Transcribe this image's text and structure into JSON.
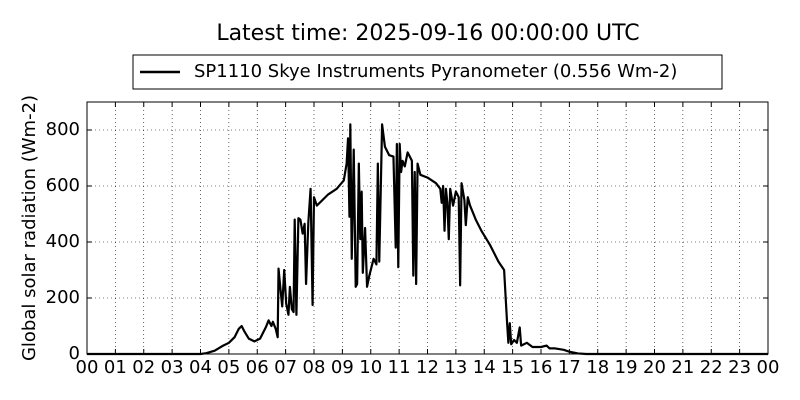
{
  "chart_data": {
    "type": "line",
    "title": "Latest time: 2025-09-16 00:00:00 UTC",
    "ylabel": "Global solar radiation (Wm-2)",
    "xlim": [
      0,
      24
    ],
    "ylim": [
      0,
      900
    ],
    "xticks": [
      {
        "value": 0,
        "label": "00"
      },
      {
        "value": 1,
        "label": "01"
      },
      {
        "value": 2,
        "label": "02"
      },
      {
        "value": 3,
        "label": "03"
      },
      {
        "value": 4,
        "label": "04"
      },
      {
        "value": 5,
        "label": "05"
      },
      {
        "value": 6,
        "label": "06"
      },
      {
        "value": 7,
        "label": "07"
      },
      {
        "value": 8,
        "label": "08"
      },
      {
        "value": 9,
        "label": "09"
      },
      {
        "value": 10,
        "label": "10"
      },
      {
        "value": 11,
        "label": "11"
      },
      {
        "value": 12,
        "label": "12"
      },
      {
        "value": 13,
        "label": "13"
      },
      {
        "value": 14,
        "label": "14"
      },
      {
        "value": 15,
        "label": "15"
      },
      {
        "value": 16,
        "label": "16"
      },
      {
        "value": 17,
        "label": "17"
      },
      {
        "value": 18,
        "label": "18"
      },
      {
        "value": 19,
        "label": "19"
      },
      {
        "value": 20,
        "label": "20"
      },
      {
        "value": 21,
        "label": "21"
      },
      {
        "value": 22,
        "label": "22"
      },
      {
        "value": 23,
        "label": "23"
      },
      {
        "value": 24,
        "label": "00"
      }
    ],
    "yticks": [
      0,
      200,
      400,
      600,
      800
    ],
    "grid": true,
    "legend": "top",
    "x": [
      0,
      1,
      2,
      3,
      4,
      4.2,
      4.5,
      4.8,
      5.0,
      5.2,
      5.35,
      5.45,
      5.55,
      5.7,
      5.9,
      6.1,
      6.3,
      6.4,
      6.5,
      6.55,
      6.65,
      6.72,
      6.75,
      6.82,
      6.88,
      6.95,
      7.02,
      7.1,
      7.15,
      7.22,
      7.28,
      7.32,
      7.38,
      7.45,
      7.52,
      7.6,
      7.67,
      7.72,
      7.8,
      7.88,
      7.95,
      8.0,
      8.1,
      8.3,
      8.5,
      8.8,
      9.05,
      9.15,
      9.2,
      9.25,
      9.28,
      9.33,
      9.4,
      9.47,
      9.52,
      9.58,
      9.63,
      9.68,
      9.72,
      9.8,
      9.87,
      9.95,
      10.1,
      10.2,
      10.25,
      10.3,
      10.4,
      10.5,
      10.65,
      10.8,
      10.88,
      10.92,
      10.97,
      11.02,
      11.07,
      11.12,
      11.2,
      11.3,
      11.45,
      11.5,
      11.55,
      11.6,
      11.65,
      11.75,
      12.0,
      12.3,
      12.45,
      12.5,
      12.55,
      12.6,
      12.65,
      12.7,
      12.75,
      12.8,
      12.9,
      13.0,
      13.1,
      13.15,
      13.2,
      13.3,
      13.35,
      13.42,
      13.5,
      13.7,
      13.9,
      14.2,
      14.5,
      14.7,
      14.8,
      14.85,
      14.9,
      14.95,
      15.05,
      15.15,
      15.25,
      15.3,
      15.5,
      15.7,
      16.0,
      16.2,
      16.3,
      16.5,
      16.8,
      17.0,
      17.3,
      17.6,
      18,
      20,
      22,
      24
    ],
    "series": [
      {
        "name": "SP1110 Skye Instruments Pyranometer (0.556 Wm-2)",
        "color": "#000000",
        "values": [
          0,
          0,
          0,
          0,
          0,
          3,
          12,
          30,
          40,
          60,
          90,
          100,
          80,
          55,
          45,
          55,
          95,
          120,
          100,
          115,
          90,
          60,
          305,
          230,
          170,
          300,
          180,
          140,
          240,
          160,
          150,
          480,
          140,
          485,
          480,
          430,
          465,
          250,
          470,
          590,
          175,
          560,
          530,
          550,
          570,
          590,
          620,
          680,
          770,
          490,
          820,
          340,
          730,
          240,
          250,
          680,
          410,
          580,
          290,
          450,
          240,
          280,
          340,
          320,
          680,
          330,
          820,
          740,
          710,
          705,
          380,
          750,
          310,
          750,
          650,
          690,
          670,
          720,
          690,
          280,
          650,
          250,
          680,
          640,
          630,
          610,
          590,
          540,
          600,
          440,
          590,
          540,
          410,
          590,
          530,
          580,
          560,
          245,
          610,
          550,
          460,
          560,
          530,
          480,
          440,
          390,
          330,
          300,
          120,
          40,
          110,
          35,
          50,
          40,
          95,
          30,
          40,
          25,
          25,
          30,
          20,
          20,
          15,
          8,
          2,
          0,
          0,
          0,
          0,
          0
        ]
      }
    ]
  }
}
